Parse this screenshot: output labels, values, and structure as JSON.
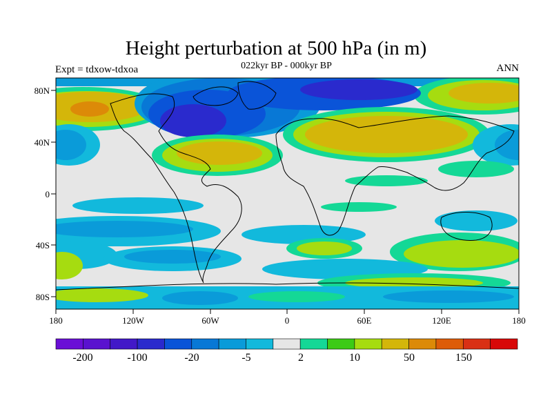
{
  "header": {
    "title": "Height perturbation at 500 hPa (in m)",
    "subtitle": "022kyr BP - 000kyr BP",
    "left_label": "Expt = tdxow-tdxoa",
    "right_label": "ANN"
  },
  "map": {
    "lat_ticks": [
      "80N",
      "40N",
      "0",
      "40S",
      "80S"
    ],
    "lon_ticks": [
      "180",
      "120W",
      "60W",
      "0",
      "60E",
      "120E",
      "180"
    ],
    "background_color": "#e6e6e6"
  },
  "colorbar": {
    "colors": [
      "#6a0fd6",
      "#5a12cf",
      "#4218c8",
      "#2a2acd",
      "#0a54d8",
      "#0878d6",
      "#0a9bd9",
      "#12b9dc",
      "#e6e6e6",
      "#14d896",
      "#3ccb16",
      "#a6dc10",
      "#d4b60a",
      "#dc8a08",
      "#dd5c08",
      "#d93014",
      "#d80808"
    ],
    "labels": [
      "-200",
      "-100",
      "-20",
      "-5",
      "2",
      "10",
      "50",
      "150"
    ]
  },
  "chart_data": {
    "type": "heatmap",
    "title": "Height perturbation at 500 hPa (in m)",
    "subtitle": "022kyr BP - 000kyr BP",
    "x_range": [
      -180,
      180
    ],
    "y_range": [
      -90,
      90
    ],
    "units": "m",
    "contour_levels": [
      -200,
      -150,
      -100,
      -50,
      -20,
      -10,
      -5,
      -2,
      2,
      5,
      10,
      20,
      50,
      100,
      150,
      200
    ],
    "features": [
      {
        "region": "North America / Hudson Bay",
        "value_range": [
          -100,
          -50
        ]
      },
      {
        "region": "North Atlantic / Greenland",
        "value_range": [
          -50,
          -20
        ]
      },
      {
        "region": "Eurasia (mid-latitudes)",
        "value_range": [
          20,
          50
        ]
      },
      {
        "region": "North Pacific / Alaska",
        "value_range": [
          50,
          100
        ]
      },
      {
        "region": "Subtropical North Atlantic",
        "value_range": [
          20,
          50
        ]
      },
      {
        "region": "Southern Ocean 30-60S",
        "value_range": [
          -10,
          20
        ]
      }
    ]
  }
}
